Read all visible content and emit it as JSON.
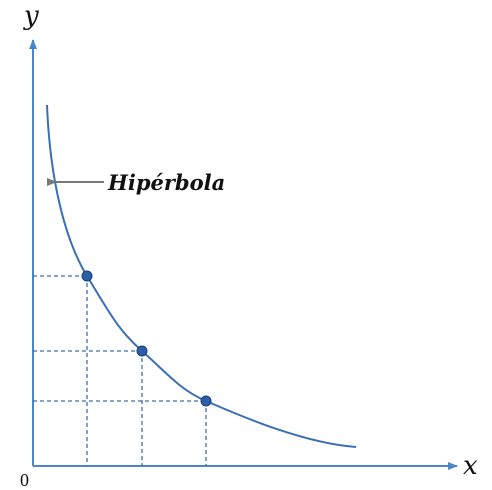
{
  "axes": {
    "y_label": "y",
    "x_label": "x",
    "origin_label": "0"
  },
  "curve": {
    "label": "Hipérbola"
  }
}
